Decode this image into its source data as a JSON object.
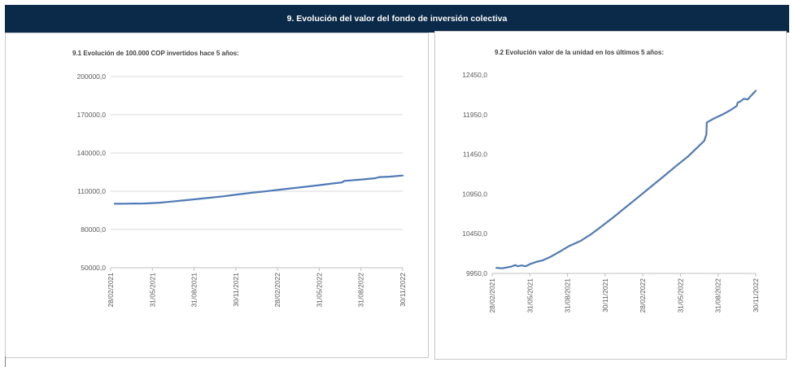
{
  "header": {
    "title": "9. Evolución del valor del fondo de inversión colectiva"
  },
  "colors": {
    "banner": "#0b2a4a",
    "series": "#4e7ab8",
    "grid": "#d9d9d9",
    "axis_text": "#595959"
  },
  "chart_data": [
    {
      "type": "line",
      "title": "9.1 Evolución de 100.000 COP invertidos hace 5 años:",
      "xlabel": "",
      "ylabel": "",
      "grid": true,
      "legend": "none",
      "ylim": [
        50000,
        200000
      ],
      "yticks": [
        "200000,0",
        "170000,0",
        "140000,0",
        "110000,0",
        "80000,0",
        "50000,0"
      ],
      "xlim": [
        "2021-02-28",
        "2022-11-30"
      ],
      "xticks": [
        "28/02/2021",
        "31/05/2021",
        "31/08/2021",
        "30/11/2021",
        "28/02/2022",
        "31/05/2022",
        "31/08/2022",
        "30/11/2022"
      ],
      "series": [
        {
          "points": [
            [
              "2021-03-09",
              100200
            ],
            [
              "2021-04-01",
              100250
            ],
            [
              "2021-04-20",
              100350
            ],
            [
              "2021-05-05",
              100300
            ],
            [
              "2021-05-20",
              100500
            ],
            [
              "2021-06-15",
              101000
            ],
            [
              "2021-07-10",
              101800
            ],
            [
              "2021-08-05",
              102700
            ],
            [
              "2021-09-01",
              103700
            ],
            [
              "2021-10-01",
              104800
            ],
            [
              "2021-11-01",
              106000
            ],
            [
              "2021-12-01",
              107400
            ],
            [
              "2022-01-01",
              108700
            ],
            [
              "2022-02-01",
              109900
            ],
            [
              "2022-03-01",
              111000
            ],
            [
              "2022-04-01",
              112300
            ],
            [
              "2022-05-01",
              113500
            ],
            [
              "2022-06-01",
              114800
            ],
            [
              "2022-07-01",
              116100
            ],
            [
              "2022-07-20",
              116900
            ],
            [
              "2022-07-25",
              118100
            ],
            [
              "2022-08-15",
              118700
            ],
            [
              "2022-09-01",
              119200
            ],
            [
              "2022-10-01",
              120200
            ],
            [
              "2022-10-10",
              121100
            ],
            [
              "2022-11-01",
              121400
            ],
            [
              "2022-11-30",
              122300
            ]
          ]
        }
      ]
    },
    {
      "type": "line",
      "title": "9.2 Evolución valor de la unidad en los últimos 5 años:",
      "xlabel": "",
      "ylabel": "",
      "grid": false,
      "legend": "none",
      "ylim": [
        9950,
        12450
      ],
      "yticks": [
        "12450,0",
        "11950,0",
        "11450,0",
        "10950,0",
        "10450,0",
        "9950,0"
      ],
      "xlim": [
        "2021-02-28",
        "2022-11-30"
      ],
      "xticks": [
        "28/02/2021",
        "31/05/2021",
        "31/08/2021",
        "30/11/2021",
        "28/02/2022",
        "31/05/2022",
        "31/08/2022",
        "30/11/2022"
      ],
      "series": [
        {
          "points": [
            [
              "2021-03-10",
              10020
            ],
            [
              "2021-03-25",
              10015
            ],
            [
              "2021-04-15",
              10035
            ],
            [
              "2021-04-25",
              10055
            ],
            [
              "2021-05-01",
              10040
            ],
            [
              "2021-05-10",
              10050
            ],
            [
              "2021-05-20",
              10040
            ],
            [
              "2021-06-01",
              10070
            ],
            [
              "2021-06-15",
              10095
            ],
            [
              "2021-07-01",
              10115
            ],
            [
              "2021-07-20",
              10160
            ],
            [
              "2021-08-10",
              10220
            ],
            [
              "2021-09-01",
              10290
            ],
            [
              "2021-10-01",
              10360
            ],
            [
              "2021-10-25",
              10440
            ],
            [
              "2021-11-20",
              10540
            ],
            [
              "2021-12-20",
              10660
            ],
            [
              "2022-01-20",
              10790
            ],
            [
              "2022-02-20",
              10920
            ],
            [
              "2022-03-20",
              11040
            ],
            [
              "2022-04-20",
              11170
            ],
            [
              "2022-05-20",
              11300
            ],
            [
              "2022-06-20",
              11430
            ],
            [
              "2022-07-10",
              11530
            ],
            [
              "2022-07-28",
              11620
            ],
            [
              "2022-08-02",
              11700
            ],
            [
              "2022-08-03",
              11850
            ],
            [
              "2022-08-20",
              11900
            ],
            [
              "2022-09-10",
              11950
            ],
            [
              "2022-10-01",
              12010
            ],
            [
              "2022-10-15",
              12060
            ],
            [
              "2022-10-17",
              12100
            ],
            [
              "2022-10-25",
              12120
            ],
            [
              "2022-11-01",
              12150
            ],
            [
              "2022-11-10",
              12140
            ],
            [
              "2022-11-30",
              12250
            ]
          ]
        }
      ]
    }
  ]
}
